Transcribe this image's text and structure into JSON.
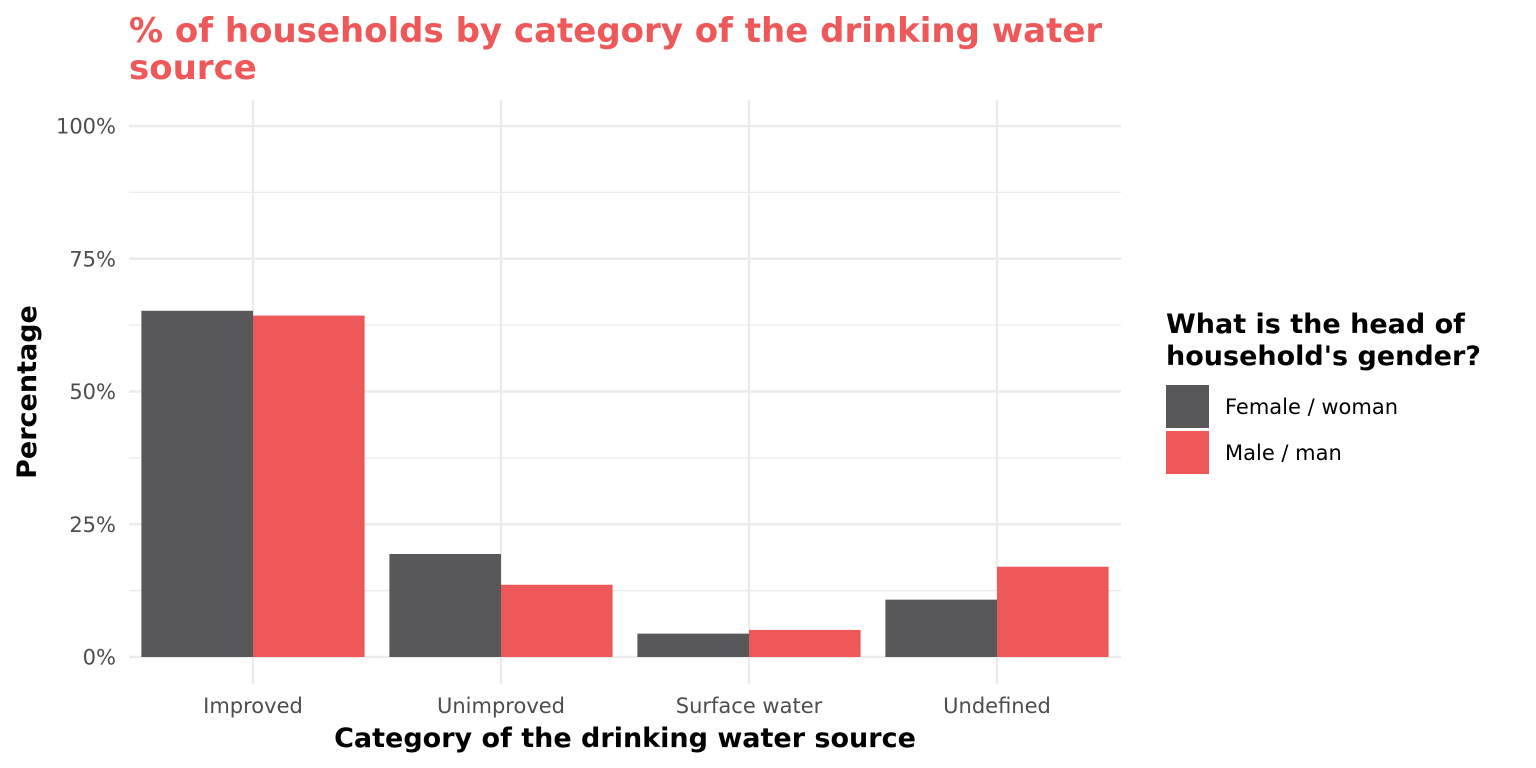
{
  "chart_data": {
    "type": "bar",
    "title": "% of households by category of the drinking water source",
    "title_lines": [
      "% of households by category of the drinking water",
      "source"
    ],
    "title_color": "#EE5859",
    "xlabel": "Category of the drinking water source",
    "ylabel": "Percentage",
    "categories": [
      "Improved",
      "Unimproved",
      "Surface water",
      "Undefined"
    ],
    "ylim": [
      0,
      1
    ],
    "y_ticks": [
      0,
      0.25,
      0.5,
      0.75,
      1.0
    ],
    "y_tick_labels": [
      "0%",
      "25%",
      "50%",
      "75%",
      "100%"
    ],
    "grid": true,
    "legend": {
      "title_lines": [
        "What is the head of",
        "household's gender?"
      ],
      "placement": "right"
    },
    "series": [
      {
        "name": "Female / woman",
        "color": "#58585A",
        "values": [
          0.652,
          0.194,
          0.044,
          0.108
        ]
      },
      {
        "name": "Male / man",
        "color": "#EE5859",
        "values": [
          0.643,
          0.136,
          0.051,
          0.17
        ]
      }
    ]
  }
}
